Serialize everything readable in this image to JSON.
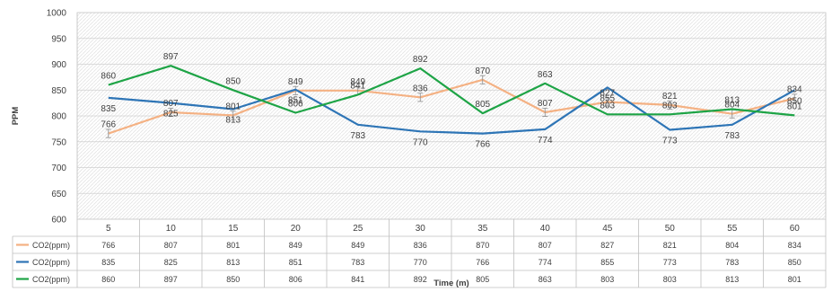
{
  "chart_data": {
    "type": "line",
    "x": [
      5,
      10,
      15,
      20,
      25,
      30,
      35,
      40,
      45,
      50,
      55,
      60
    ],
    "categories": [
      "5",
      "10",
      "15",
      "20",
      "25",
      "30",
      "35",
      "40",
      "45",
      "50",
      "55",
      "60"
    ],
    "series": [
      {
        "name": "CO2(ppm)",
        "color": "#f4b183",
        "error_bars": true,
        "values": [
          766,
          807,
          801,
          849,
          849,
          836,
          870,
          807,
          827,
          821,
          804,
          834
        ]
      },
      {
        "name": "CO2(ppm)",
        "color": "#2e75b6",
        "error_bars": false,
        "values": [
          835,
          825,
          813,
          851,
          783,
          770,
          766,
          774,
          855,
          773,
          783,
          850
        ]
      },
      {
        "name": "CO2(ppm)",
        "color": "#1ea446",
        "error_bars": false,
        "values": [
          860,
          897,
          850,
          806,
          841,
          892,
          805,
          863,
          803,
          803,
          813,
          801
        ]
      }
    ],
    "ylabel": "PPM",
    "xlabel": "Time (m)",
    "ylim": [
      600,
      1000
    ],
    "yticks": [
      "1000",
      "950",
      "900",
      "850",
      "800",
      "750",
      "700",
      "650",
      "600"
    ],
    "grid": true,
    "data_table": true,
    "legend": "data-table-left"
  }
}
